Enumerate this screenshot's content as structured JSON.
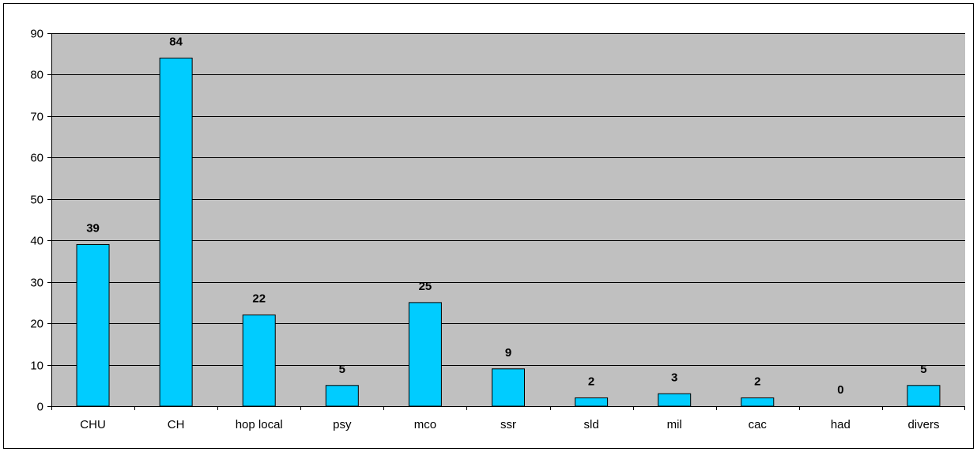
{
  "chart_data": {
    "type": "bar",
    "categories": [
      "CHU",
      "CH",
      "hop local",
      "psy",
      "mco",
      "ssr",
      "sld",
      "mil",
      "cac",
      "had",
      "divers"
    ],
    "values": [
      39,
      84,
      22,
      5,
      25,
      9,
      2,
      3,
      2,
      0,
      5
    ],
    "data_labels": [
      "39",
      "84",
      "22",
      "5",
      "25",
      "9",
      "2",
      "3",
      "2",
      "0",
      "5"
    ],
    "ylim": [
      0,
      90
    ],
    "yticks": [
      0,
      10,
      20,
      30,
      40,
      50,
      60,
      70,
      80,
      90
    ],
    "grid": true,
    "legend": "none",
    "colors": {
      "bar_fill": "#00ccff",
      "bar_stroke": "#000000",
      "plot_background": "#c0c0c0",
      "gridline": "#000000",
      "page_background": "#ffffff"
    }
  }
}
